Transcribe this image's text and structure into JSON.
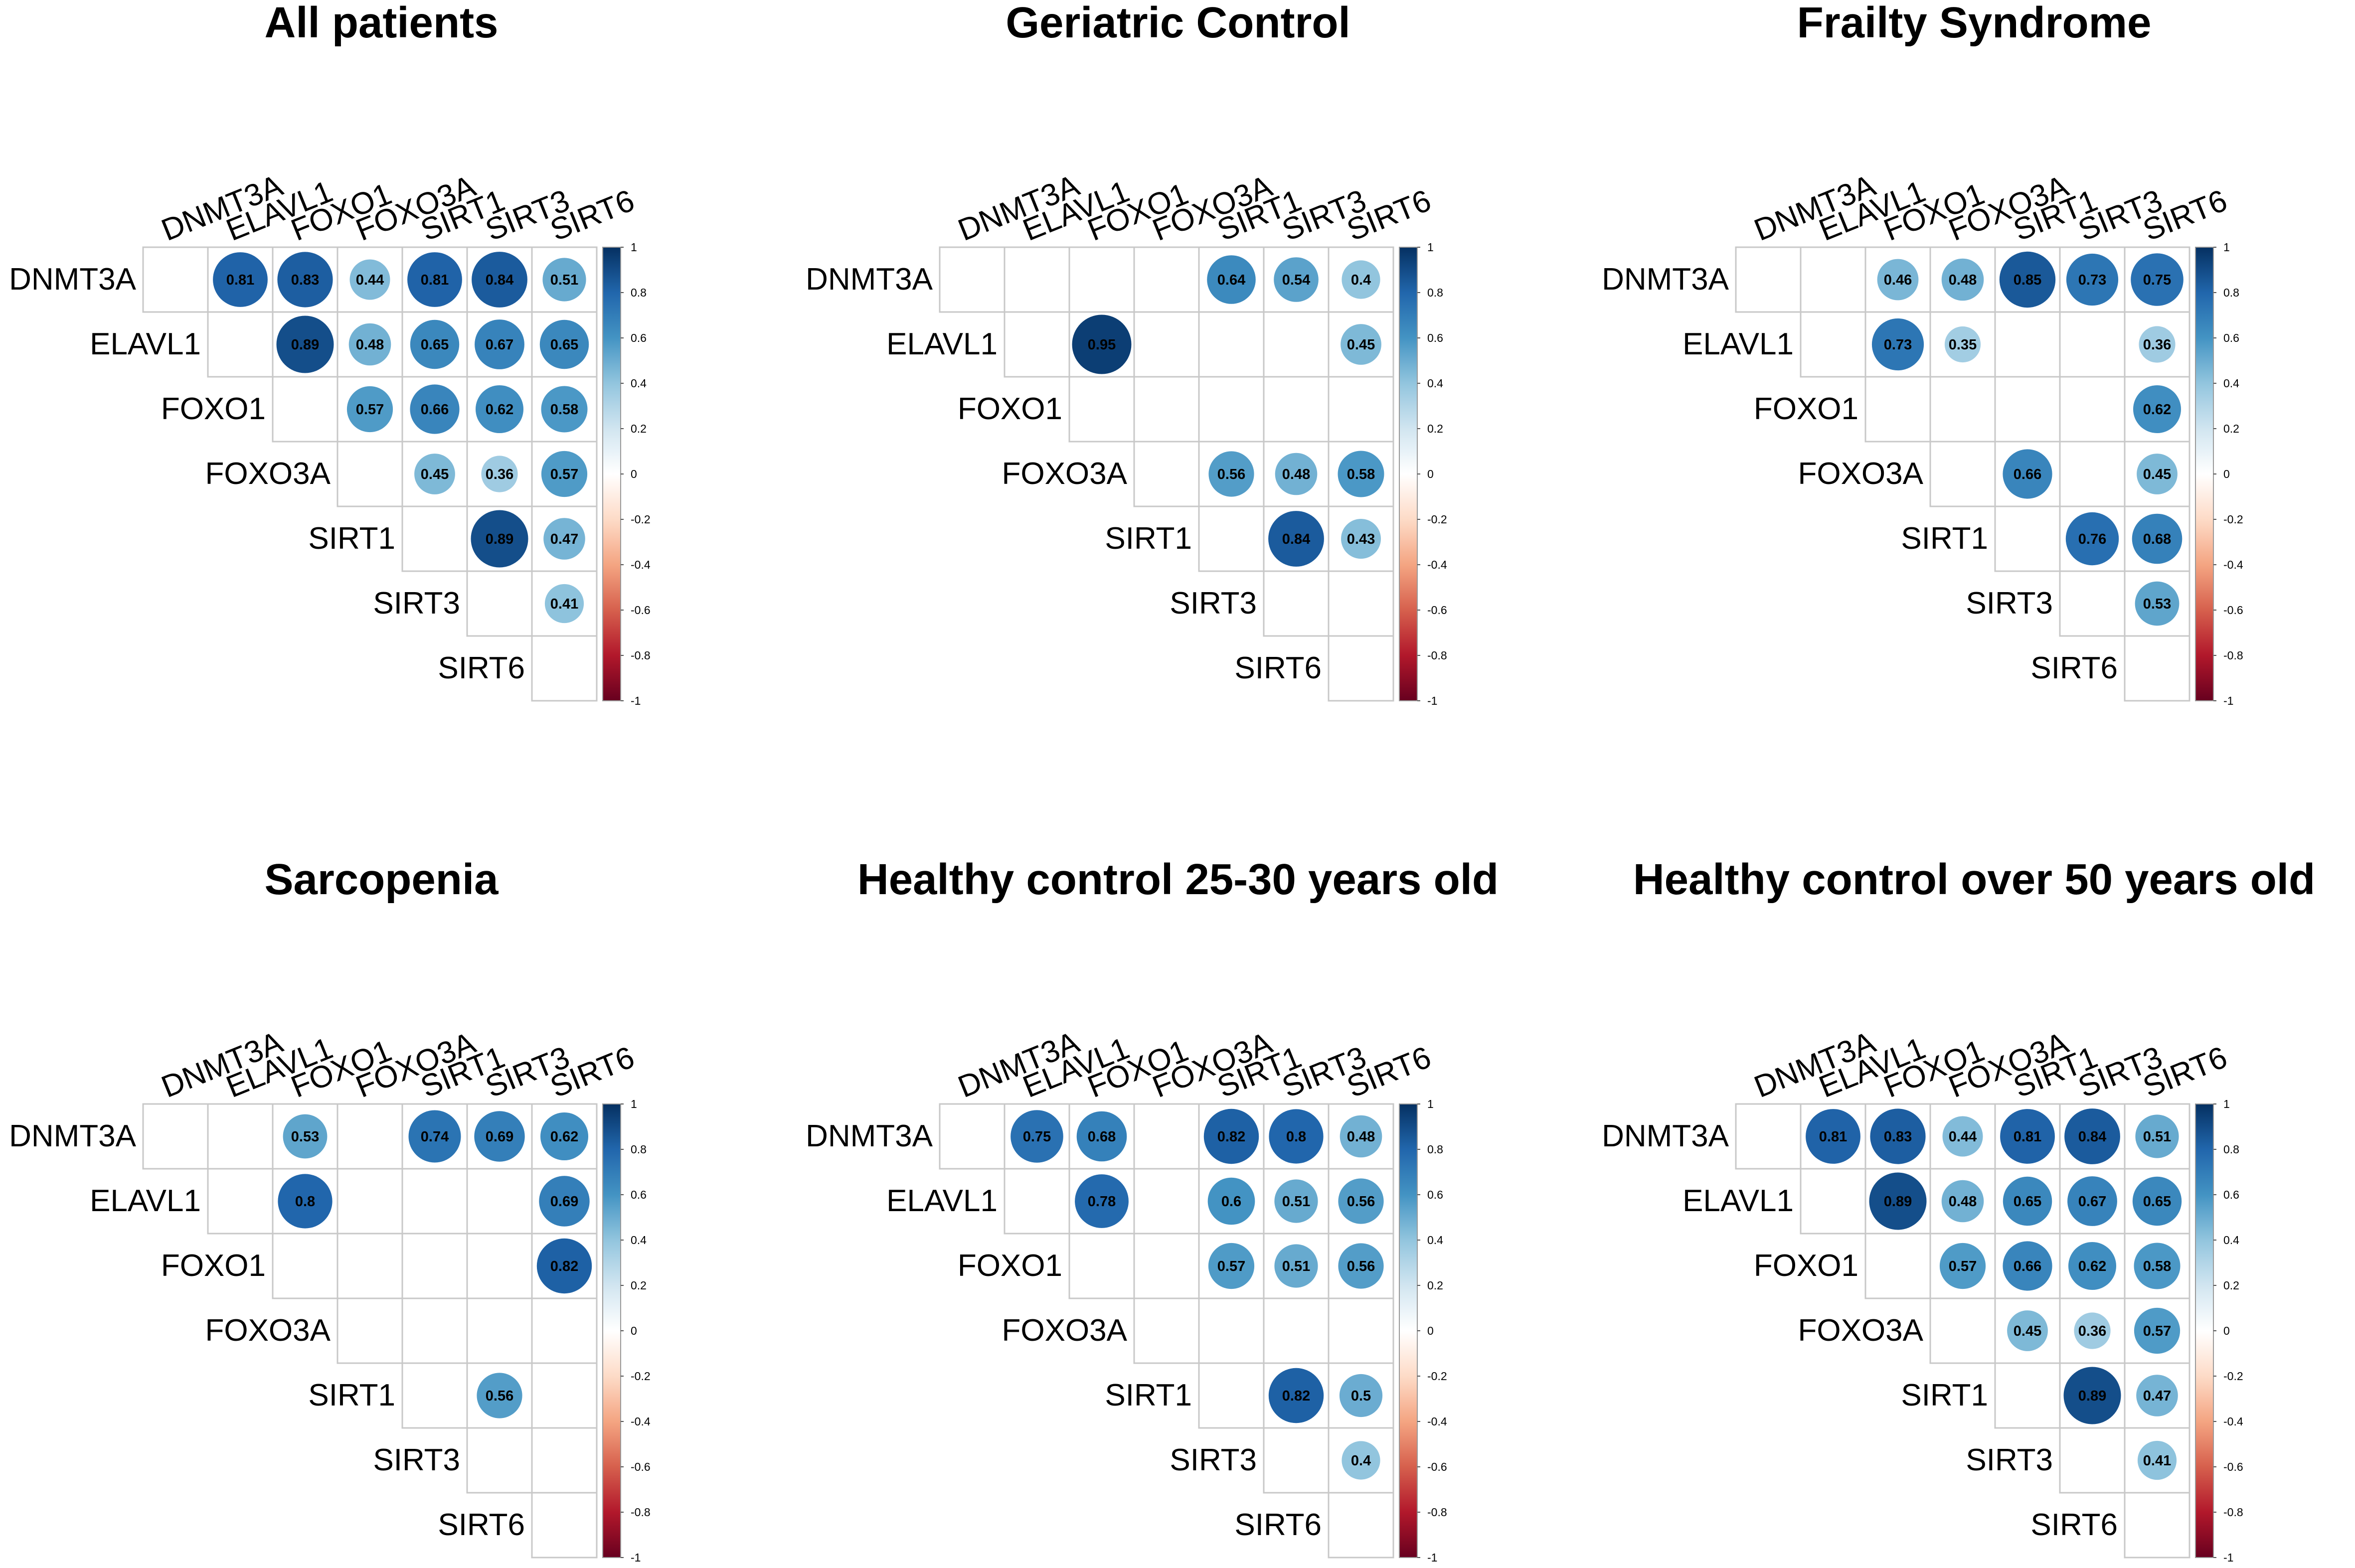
{
  "chart_data": [
    {
      "type": "heatmap",
      "title": "All patients",
      "genes": [
        "DNMT3A",
        "ELAVL1",
        "FOXO1",
        "FOXO3A",
        "SIRT1",
        "SIRT3",
        "SIRT6"
      ],
      "values": [
        [
          null,
          0.81,
          0.83,
          0.44,
          0.81,
          0.84,
          0.51
        ],
        [
          null,
          null,
          0.89,
          0.48,
          0.65,
          0.67,
          0.65
        ],
        [
          null,
          null,
          null,
          0.57,
          0.66,
          0.62,
          0.58
        ],
        [
          null,
          null,
          null,
          null,
          0.45,
          0.36,
          0.57
        ],
        [
          null,
          null,
          null,
          null,
          null,
          0.89,
          0.47
        ],
        [
          null,
          null,
          null,
          null,
          null,
          null,
          0.41
        ],
        [
          null,
          null,
          null,
          null,
          null,
          null,
          null
        ]
      ]
    },
    {
      "type": "heatmap",
      "title": "Geriatric Control",
      "genes": [
        "DNMT3A",
        "ELAVL1",
        "FOXO1",
        "FOXO3A",
        "SIRT1",
        "SIRT3",
        "SIRT6"
      ],
      "values": [
        [
          null,
          null,
          null,
          null,
          0.64,
          0.54,
          0.4
        ],
        [
          null,
          null,
          0.95,
          null,
          null,
          null,
          0.45
        ],
        [
          null,
          null,
          null,
          null,
          null,
          null,
          null
        ],
        [
          null,
          null,
          null,
          null,
          0.56,
          0.48,
          0.58
        ],
        [
          null,
          null,
          null,
          null,
          null,
          0.84,
          0.43
        ],
        [
          null,
          null,
          null,
          null,
          null,
          null,
          null
        ],
        [
          null,
          null,
          null,
          null,
          null,
          null,
          null
        ]
      ]
    },
    {
      "type": "heatmap",
      "title": "Frailty Syndrome",
      "genes": [
        "DNMT3A",
        "ELAVL1",
        "FOXO1",
        "FOXO3A",
        "SIRT1",
        "SIRT3",
        "SIRT6"
      ],
      "values": [
        [
          null,
          null,
          0.46,
          0.48,
          0.85,
          0.73,
          0.75
        ],
        [
          null,
          null,
          0.73,
          0.35,
          null,
          null,
          0.36
        ],
        [
          null,
          null,
          null,
          null,
          null,
          null,
          0.62
        ],
        [
          null,
          null,
          null,
          null,
          0.66,
          null,
          0.45
        ],
        [
          null,
          null,
          null,
          null,
          null,
          0.76,
          0.68
        ],
        [
          null,
          null,
          null,
          null,
          null,
          null,
          0.53
        ],
        [
          null,
          null,
          null,
          null,
          null,
          null,
          null
        ]
      ]
    },
    {
      "type": "heatmap",
      "title": "Sarcopenia",
      "genes": [
        "DNMT3A",
        "ELAVL1",
        "FOXO1",
        "FOXO3A",
        "SIRT1",
        "SIRT3",
        "SIRT6"
      ],
      "values": [
        [
          null,
          null,
          0.53,
          null,
          0.74,
          0.69,
          0.62
        ],
        [
          null,
          null,
          0.8,
          null,
          null,
          null,
          0.69
        ],
        [
          null,
          null,
          null,
          null,
          null,
          null,
          0.82
        ],
        [
          null,
          null,
          null,
          null,
          null,
          null,
          null
        ],
        [
          null,
          null,
          null,
          null,
          null,
          0.56,
          null
        ],
        [
          null,
          null,
          null,
          null,
          null,
          null,
          null
        ],
        [
          null,
          null,
          null,
          null,
          null,
          null,
          null
        ]
      ]
    },
    {
      "type": "heatmap",
      "title": "Healthy control 25-30 years old",
      "genes": [
        "DNMT3A",
        "ELAVL1",
        "FOXO1",
        "FOXO3A",
        "SIRT1",
        "SIRT3",
        "SIRT6"
      ],
      "values": [
        [
          null,
          0.75,
          0.68,
          null,
          0.82,
          0.8,
          0.48
        ],
        [
          null,
          null,
          0.78,
          null,
          0.6,
          0.51,
          0.56
        ],
        [
          null,
          null,
          null,
          null,
          0.57,
          0.51,
          0.56
        ],
        [
          null,
          null,
          null,
          null,
          null,
          null,
          null
        ],
        [
          null,
          null,
          null,
          null,
          null,
          0.82,
          0.5
        ],
        [
          null,
          null,
          null,
          null,
          null,
          null,
          0.4
        ],
        [
          null,
          null,
          null,
          null,
          null,
          null,
          null
        ]
      ]
    },
    {
      "type": "heatmap",
      "title": "Healthy control over 50 years old",
      "genes": [
        "DNMT3A",
        "ELAVL1",
        "FOXO1",
        "FOXO3A",
        "SIRT1",
        "SIRT3",
        "SIRT6"
      ],
      "values": [
        [
          null,
          0.81,
          0.83,
          0.44,
          0.81,
          0.84,
          0.51
        ],
        [
          null,
          null,
          0.89,
          0.48,
          0.65,
          0.67,
          0.65
        ],
        [
          null,
          null,
          null,
          0.57,
          0.66,
          0.62,
          0.58
        ],
        [
          null,
          null,
          null,
          null,
          0.45,
          0.36,
          0.57
        ],
        [
          null,
          null,
          null,
          null,
          null,
          0.89,
          0.47
        ],
        [
          null,
          null,
          null,
          null,
          null,
          null,
          0.41
        ],
        [
          null,
          null,
          null,
          null,
          null,
          null,
          null
        ]
      ]
    }
  ],
  "colorbar": {
    "ticks": [
      "1",
      "0.8",
      "0.6",
      "0.4",
      "0.2",
      "0",
      "-0.2",
      "-0.4",
      "-0.6",
      "-0.8",
      "-1"
    ],
    "range": [
      -1,
      1
    ]
  },
  "colors": {
    "scale": [
      "#67001F",
      "#B2182B",
      "#D6604D",
      "#F4A582",
      "#FDDBC7",
      "#FFFFFF",
      "#D1E5F0",
      "#92C5DE",
      "#4393C3",
      "#2166AC",
      "#053061"
    ]
  }
}
